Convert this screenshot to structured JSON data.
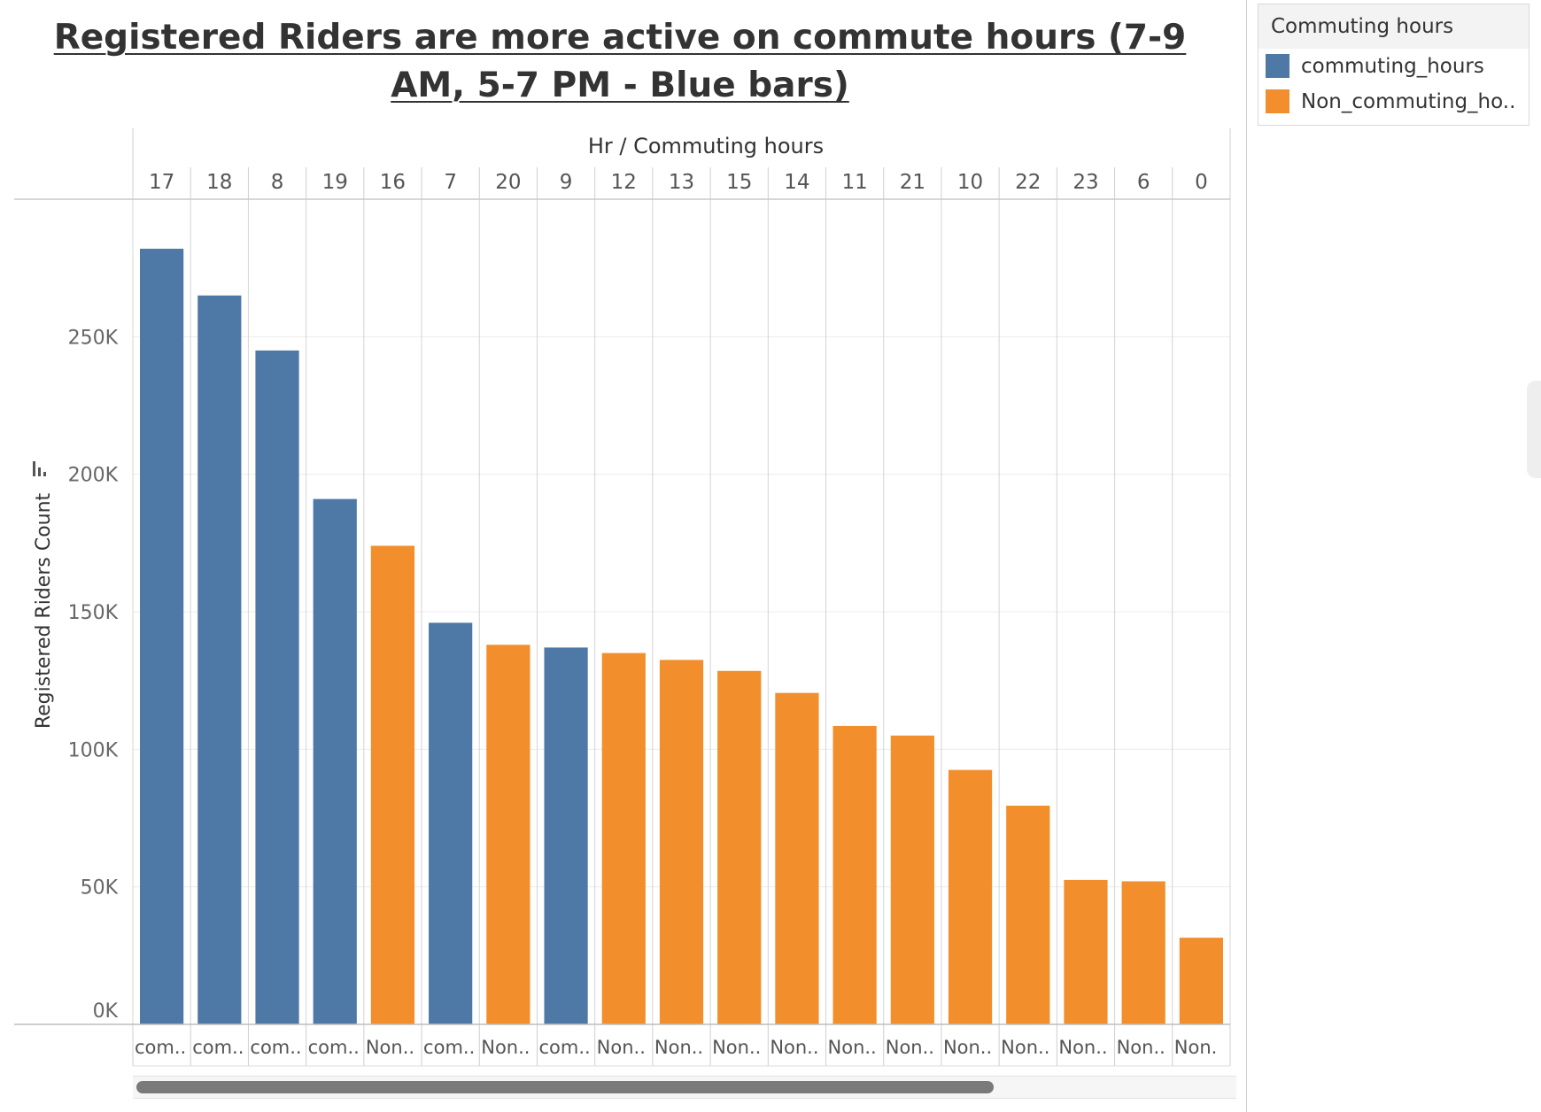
{
  "chart_data": {
    "type": "bar",
    "title": "Registered Riders are more active on commute hours (7-9 AM, 5-7 PM - Blue bars)",
    "header_label": "Hr / Commuting hours",
    "ylabel": "Registered Riders Count",
    "ylim": [
      0,
      300000
    ],
    "y_ticks": [
      {
        "value": 0,
        "label": "0K"
      },
      {
        "value": 50000,
        "label": "50K"
      },
      {
        "value": 100000,
        "label": "100K"
      },
      {
        "value": 150000,
        "label": "150K"
      },
      {
        "value": 200000,
        "label": "200K"
      },
      {
        "value": 250000,
        "label": "250K"
      }
    ],
    "colors": {
      "commuting_hours": "#4e79a7",
      "Non_commuting_hours": "#f28e2b"
    },
    "legend": {
      "title": "Commuting hours",
      "items": [
        {
          "label": "commuting_hours",
          "key": "commuting_hours"
        },
        {
          "label": "Non_commuting_ho..",
          "key": "Non_commuting_hours"
        }
      ]
    },
    "bars": [
      {
        "hour": "17",
        "category": "commuting_hours",
        "bottom_label": "com..",
        "value": 282000
      },
      {
        "hour": "18",
        "category": "commuting_hours",
        "bottom_label": "com..",
        "value": 265000
      },
      {
        "hour": "8",
        "category": "commuting_hours",
        "bottom_label": "com..",
        "value": 245000
      },
      {
        "hour": "19",
        "category": "commuting_hours",
        "bottom_label": "com..",
        "value": 191000
      },
      {
        "hour": "16",
        "category": "Non_commuting_hours",
        "bottom_label": "Non..",
        "value": 174000
      },
      {
        "hour": "7",
        "category": "commuting_hours",
        "bottom_label": "com..",
        "value": 146000
      },
      {
        "hour": "20",
        "category": "Non_commuting_hours",
        "bottom_label": "Non..",
        "value": 138000
      },
      {
        "hour": "9",
        "category": "commuting_hours",
        "bottom_label": "com..",
        "value": 137000
      },
      {
        "hour": "12",
        "category": "Non_commuting_hours",
        "bottom_label": "Non..",
        "value": 135000
      },
      {
        "hour": "13",
        "category": "Non_commuting_hours",
        "bottom_label": "Non..",
        "value": 132500
      },
      {
        "hour": "15",
        "category": "Non_commuting_hours",
        "bottom_label": "Non..",
        "value": 128500
      },
      {
        "hour": "14",
        "category": "Non_commuting_hours",
        "bottom_label": "Non..",
        "value": 120500
      },
      {
        "hour": "11",
        "category": "Non_commuting_hours",
        "bottom_label": "Non..",
        "value": 108500
      },
      {
        "hour": "21",
        "category": "Non_commuting_hours",
        "bottom_label": "Non..",
        "value": 105000
      },
      {
        "hour": "10",
        "category": "Non_commuting_hours",
        "bottom_label": "Non..",
        "value": 92500
      },
      {
        "hour": "22",
        "category": "Non_commuting_hours",
        "bottom_label": "Non..",
        "value": 79500
      },
      {
        "hour": "23",
        "category": "Non_commuting_hours",
        "bottom_label": "Non..",
        "value": 52500
      },
      {
        "hour": "6",
        "category": "Non_commuting_hours",
        "bottom_label": "Non..",
        "value": 52000
      },
      {
        "hour": "0",
        "category": "Non_commuting_hours",
        "bottom_label": "Non.",
        "value": 31500
      }
    ]
  }
}
